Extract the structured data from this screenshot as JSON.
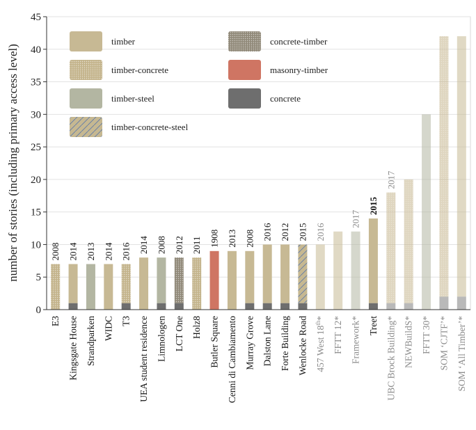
{
  "chart_data": {
    "type": "bar",
    "ylabel": "number of stories (including primary access level)",
    "ylim": [
      0,
      45
    ],
    "yticks": [
      0,
      5,
      10,
      15,
      20,
      25,
      30,
      35,
      40,
      45
    ],
    "grid": "horizontal",
    "legend_position": "top-left",
    "materials": [
      {
        "key": "timber",
        "label": "timber",
        "color": "#c7b994",
        "pattern": "none"
      },
      {
        "key": "timber-concrete",
        "label": "timber-concrete",
        "color": "#c4b48c",
        "pattern": "dots"
      },
      {
        "key": "timber-steel",
        "label": "timber-steel",
        "color": "#b3b6a2",
        "pattern": "none"
      },
      {
        "key": "timber-concrete-steel",
        "label": "timber-concrete-steel",
        "color": "#c6b891",
        "pattern": "hatch"
      },
      {
        "key": "concrete-timber",
        "label": "concrete-timber",
        "color": "#918a7a",
        "pattern": "dots"
      },
      {
        "key": "masonry-timber",
        "label": "masonry-timber",
        "color": "#cf7563",
        "pattern": "none"
      },
      {
        "key": "concrete",
        "label": "concrete",
        "color": "#6e6e6e",
        "pattern": "none"
      }
    ],
    "legend_order": [
      "timber",
      "timber-concrete",
      "timber-steel",
      "timber-concrete-steel",
      "concrete-timber",
      "masonry-timber",
      "concrete"
    ],
    "buildings": [
      {
        "name": "E3",
        "stories": 7,
        "base": 0,
        "material": "timber-concrete",
        "year": "2008",
        "proposed": false,
        "year_bold": false
      },
      {
        "name": "Kingsgate House",
        "stories": 7,
        "base": 1,
        "material": "timber",
        "year": "2014",
        "proposed": false,
        "year_bold": false
      },
      {
        "name": "Strandparken",
        "stories": 7,
        "base": 0,
        "material": "timber-steel",
        "year": "2013",
        "proposed": false,
        "year_bold": false
      },
      {
        "name": "WIDC",
        "stories": 7,
        "base": 0,
        "material": "timber",
        "year": "2014",
        "proposed": false,
        "year_bold": false
      },
      {
        "name": "T3",
        "stories": 7,
        "base": 1,
        "material": "timber-concrete",
        "year": "2016",
        "proposed": false,
        "year_bold": false
      },
      {
        "name": "UEA student residence",
        "stories": 8,
        "base": 0,
        "material": "timber",
        "year": "2014",
        "proposed": false,
        "year_bold": false
      },
      {
        "name": "Limnologen",
        "stories": 8,
        "base": 1,
        "material": "timber-steel",
        "year": "2008",
        "proposed": false,
        "year_bold": false
      },
      {
        "name": "LCT One",
        "stories": 8,
        "base": 1,
        "material": "concrete-timber",
        "year": "2012",
        "proposed": false,
        "year_bold": false
      },
      {
        "name": "Holz8",
        "stories": 8,
        "base": 0,
        "material": "timber-concrete",
        "year": "2011",
        "proposed": false,
        "year_bold": false
      },
      {
        "name": "Butler Square",
        "stories": 9,
        "base": 0,
        "material": "masonry-timber",
        "year": "1908",
        "proposed": false,
        "year_bold": false
      },
      {
        "name": "Cenni di Cambiamento",
        "stories": 9,
        "base": 0,
        "material": "timber",
        "year": "2013",
        "proposed": false,
        "year_bold": false
      },
      {
        "name": "Murray Grove",
        "stories": 9,
        "base": 1,
        "material": "timber",
        "year": "2008",
        "proposed": false,
        "year_bold": false
      },
      {
        "name": "Dalston Lane",
        "stories": 10,
        "base": 1,
        "material": "timber",
        "year": "2016",
        "proposed": false,
        "year_bold": false
      },
      {
        "name": "Forte Building",
        "stories": 10,
        "base": 1,
        "material": "timber",
        "year": "2012",
        "proposed": false,
        "year_bold": false
      },
      {
        "name": "Wenlocke Road",
        "stories": 10,
        "base": 1,
        "material": "timber-concrete-steel",
        "year": "2015",
        "proposed": false,
        "year_bold": false
      },
      {
        "name": "457 West 18th*",
        "name_sup": "th",
        "stories": 10,
        "base": 0,
        "material": "timber",
        "year": "2016",
        "proposed": true,
        "year_bold": false
      },
      {
        "name": "FFTT 12*",
        "stories": 12,
        "base": 0,
        "material": "timber",
        "year": "",
        "proposed": true,
        "year_bold": false
      },
      {
        "name": "Framework*",
        "stories": 12,
        "base": 0,
        "material": "timber-steel",
        "year": "2017",
        "proposed": true,
        "year_bold": false
      },
      {
        "name": "Treet",
        "stories": 14,
        "base": 1,
        "material": "timber",
        "year": "2015",
        "proposed": false,
        "year_bold": true
      },
      {
        "name": "UBC Brock Building*",
        "stories": 18,
        "base": 1,
        "material": "timber-concrete",
        "year": "2017",
        "proposed": true,
        "year_bold": false
      },
      {
        "name": "NEWBuildS*",
        "stories": 20,
        "base": 1,
        "material": "timber-concrete",
        "year": "",
        "proposed": true,
        "year_bold": false
      },
      {
        "name": "FFTT 30*",
        "stories": 30,
        "base": 0,
        "material": "timber-steel",
        "year": "",
        "proposed": true,
        "year_bold": false
      },
      {
        "name": "SOM ‘CJTF’*",
        "stories": 42,
        "base": 2,
        "material": "timber-concrete",
        "year": "",
        "proposed": true,
        "year_bold": false
      },
      {
        "name": "SOM ‘All Timber’*",
        "stories": 42,
        "base": 2,
        "material": "timber",
        "year": "",
        "proposed": true,
        "year_bold": false
      }
    ]
  }
}
